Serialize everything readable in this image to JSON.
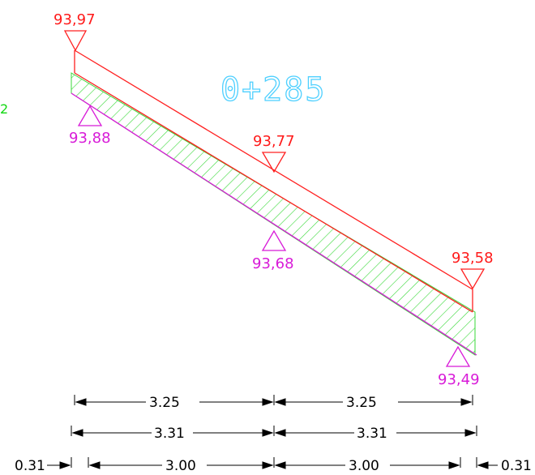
{
  "station": "0+285",
  "edge_label": "2",
  "colors": {
    "red_line": "#ff2020",
    "magenta_line": "#d81bd8",
    "hatch": "#38d838",
    "station_text": "#4fd0ff",
    "dimension": "#000000",
    "edge_label": "#12d812"
  },
  "top_elevations": {
    "left": "93,97",
    "middle": "93,77",
    "right": "93,58"
  },
  "bottom_elevations": {
    "left": "93,88",
    "middle": "93,68",
    "right": "93,49"
  },
  "dimensions": {
    "row1": [
      "3.25",
      "3.25"
    ],
    "row2": [
      "3.31",
      "3.31"
    ],
    "row3": [
      "0.31",
      "3.00",
      "3.00",
      "0.31"
    ]
  }
}
